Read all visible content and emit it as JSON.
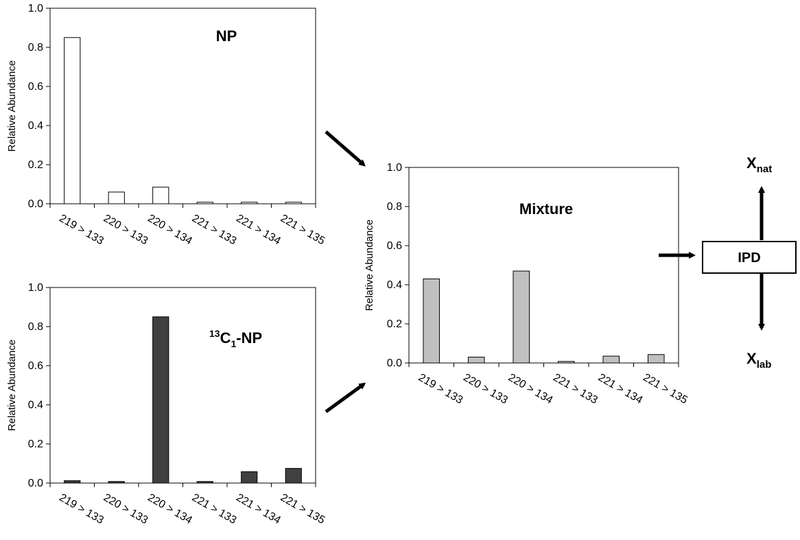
{
  "chart_data": [
    {
      "id": "np",
      "type": "bar",
      "title": "NP",
      "ylabel": "Relative Abundance",
      "ylim": [
        0,
        1.0
      ],
      "yticks": [
        "0.0",
        "0.2",
        "0.4",
        "0.6",
        "0.8",
        "1.0"
      ],
      "categories": [
        "219 > 133",
        "220 > 133",
        "220 > 134",
        "221 > 133",
        "221 > 134",
        "221 > 135"
      ],
      "values": [
        0.85,
        0.06,
        0.085,
        0.008,
        0.008,
        0.008
      ],
      "bar_fill": "#ffffff",
      "grid": false
    },
    {
      "id": "c13np",
      "type": "bar",
      "title_parts": {
        "sup": "13",
        "main": "C",
        "sub": "1",
        "suffix": "-NP"
      },
      "ylabel": "Relative Abundance",
      "ylim": [
        0,
        1.0
      ],
      "yticks": [
        "0.0",
        "0.2",
        "0.4",
        "0.6",
        "0.8",
        "1.0"
      ],
      "categories": [
        "219 > 133",
        "220 > 133",
        "220 > 134",
        "221 > 133",
        "221 > 134",
        "221 > 135"
      ],
      "values": [
        0.012,
        0.008,
        0.85,
        0.008,
        0.058,
        0.075
      ],
      "bar_fill": "#404040",
      "grid": false
    },
    {
      "id": "mixture",
      "type": "bar",
      "title": "Mixture",
      "ylabel": "Relative Abundance",
      "ylim": [
        0,
        1.0
      ],
      "yticks": [
        "0.0",
        "0.2",
        "0.4",
        "0.6",
        "0.8",
        "1.0"
      ],
      "categories": [
        "219 > 133",
        "220 > 133",
        "220 > 134",
        "221 > 133",
        "221 > 134",
        "221 > 135"
      ],
      "values": [
        0.43,
        0.03,
        0.47,
        0.008,
        0.035,
        0.043
      ],
      "bar_fill": "#c0c0c0",
      "grid": false
    }
  ],
  "diagram": {
    "ipd_label": "IPD",
    "x_nat": {
      "main": "X",
      "sub": "nat"
    },
    "x_lab": {
      "main": "X",
      "sub": "lab"
    }
  }
}
